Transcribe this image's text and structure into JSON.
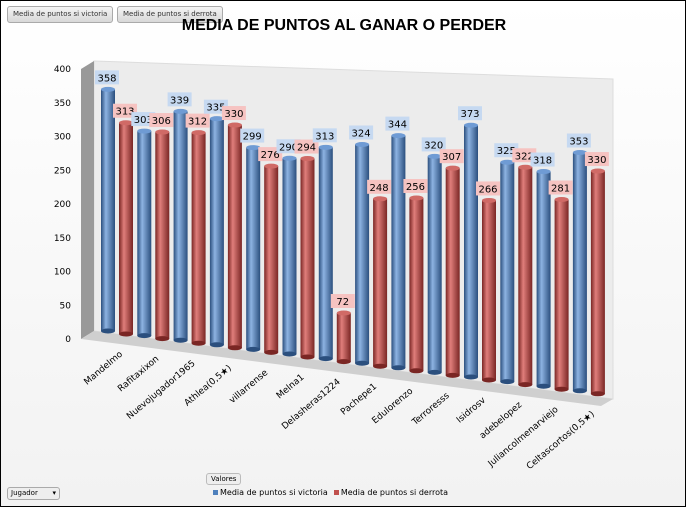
{
  "filter_buttons": [
    "Media de puntos si victoria",
    "Media de puntos si derrota"
  ],
  "field_buttons": {
    "values": "Valores",
    "row": "Jugador"
  },
  "chart_data": {
    "type": "bar",
    "title": "MEDIA DE PUNTOS  AL GANAR O PERDER",
    "categories": [
      "Mandelmo",
      "Rafitaxixon",
      "Nuevojugador1965",
      "Athlea(0,5★)",
      "villarrense",
      "Melna1",
      "Delasheras1224",
      "Pachepe1",
      "Edulorenzo",
      "Terroresss",
      "Isidrosv",
      "adebelopez",
      "Juliancolmenarviejo",
      "Celtascortos(0,5★)"
    ],
    "series": [
      {
        "name": "Media de puntos si victoria",
        "color": "#4f81bd",
        "values": [
          358,
          303,
          339,
          335,
          299,
          290,
          313,
          324,
          344,
          320,
          373,
          325,
          318,
          353
        ]
      },
      {
        "name": "Media de puntos si derrota",
        "color": "#c0504d",
        "values": [
          313,
          306,
          312,
          330,
          276,
          294,
          72,
          248,
          256,
          307,
          266,
          322,
          281,
          330
        ]
      }
    ],
    "ylim": [
      0,
      400
    ],
    "yticks": [
      0,
      50,
      100,
      150,
      200,
      250,
      300,
      350,
      400
    ],
    "legend": "bottom",
    "grid": false
  }
}
